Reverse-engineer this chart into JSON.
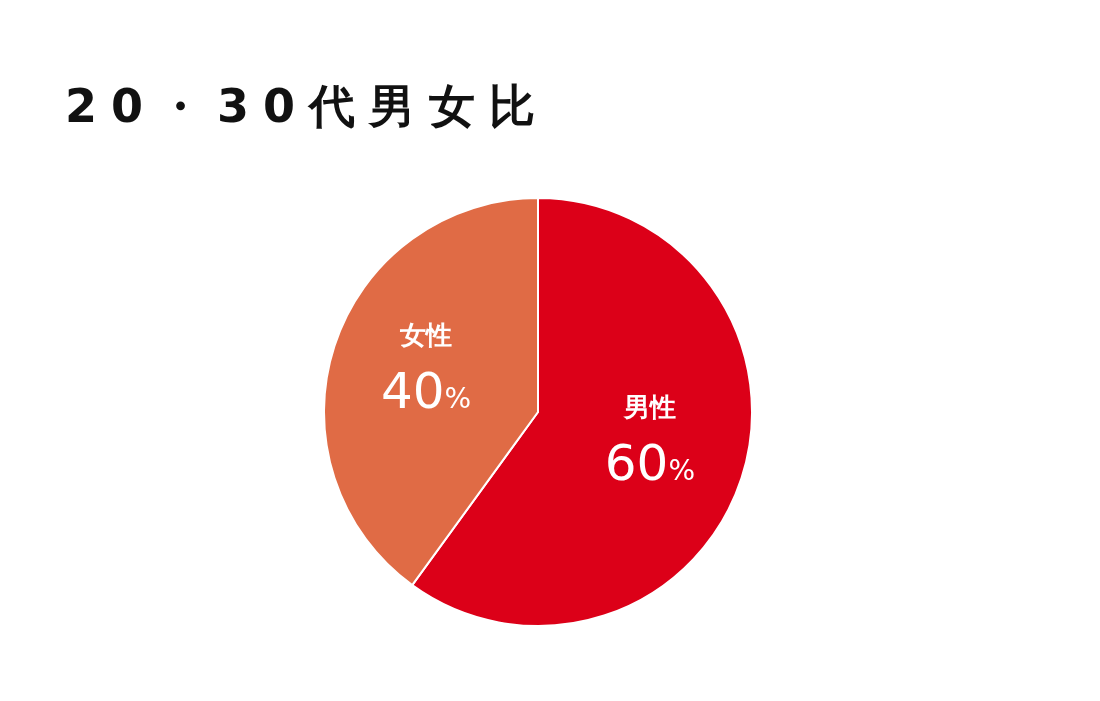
{
  "chart_data": {
    "type": "pie",
    "title": "20・30代男女比",
    "categories": [
      "男性",
      "女性"
    ],
    "values": [
      60,
      40
    ],
    "colors": [
      "#dc0018",
      "#e06b45"
    ],
    "value_labels": [
      "60%",
      "40%"
    ]
  }
}
